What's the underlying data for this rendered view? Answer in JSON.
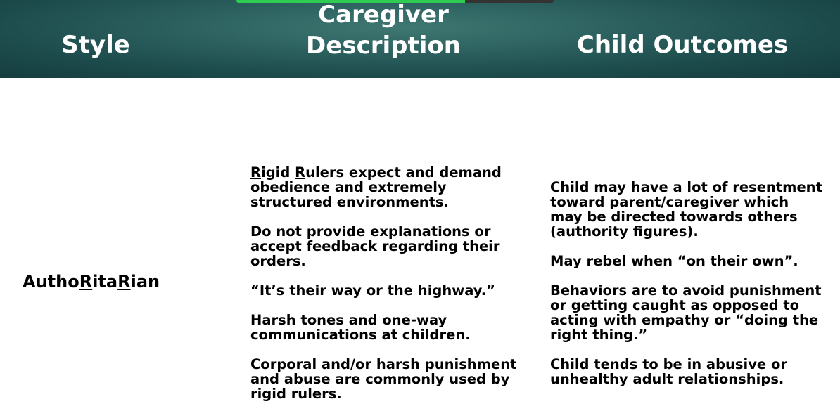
{
  "header": {
    "col1": "Style",
    "col2_line1": "Caregiver",
    "col2_line2": "Description",
    "col3": "Child Outcomes"
  },
  "progress": {
    "fraction": 0.72
  },
  "style": {
    "part1": "Autho",
    "r1": "R",
    "part2": "ita",
    "r2": "R",
    "part3": "ian"
  },
  "description": {
    "p1": {
      "r1": "R",
      "t1": "igid ",
      "r2": "R",
      "t2": "ulers expect and demand\nobedience and extremely\nstructured environments."
    },
    "p2": "Do not provide explanations or\naccept feedback regarding their\norders.",
    "p3": "“It’s their way or the highway.”",
    "p4": {
      "t1": "Harsh tones and one-way\ncommunications ",
      "u": "at",
      "t2": " children."
    },
    "p5": "Corporal and/or harsh punishment\nand abuse are commonly used by\nrigid rulers."
  },
  "outcomes": {
    "p1": "Child may have a lot of resentment\ntoward parent/caregiver which\nmay be directed towards others\n(authority figures).",
    "p2": "May rebel when “on their own”.",
    "p3": "Behaviors are to avoid punishment\nor getting caught as opposed to\nacting with empathy or “doing the\nright thing.”",
    "p4": "Child tends to be in abusive or\nunhealthy adult relationships."
  }
}
